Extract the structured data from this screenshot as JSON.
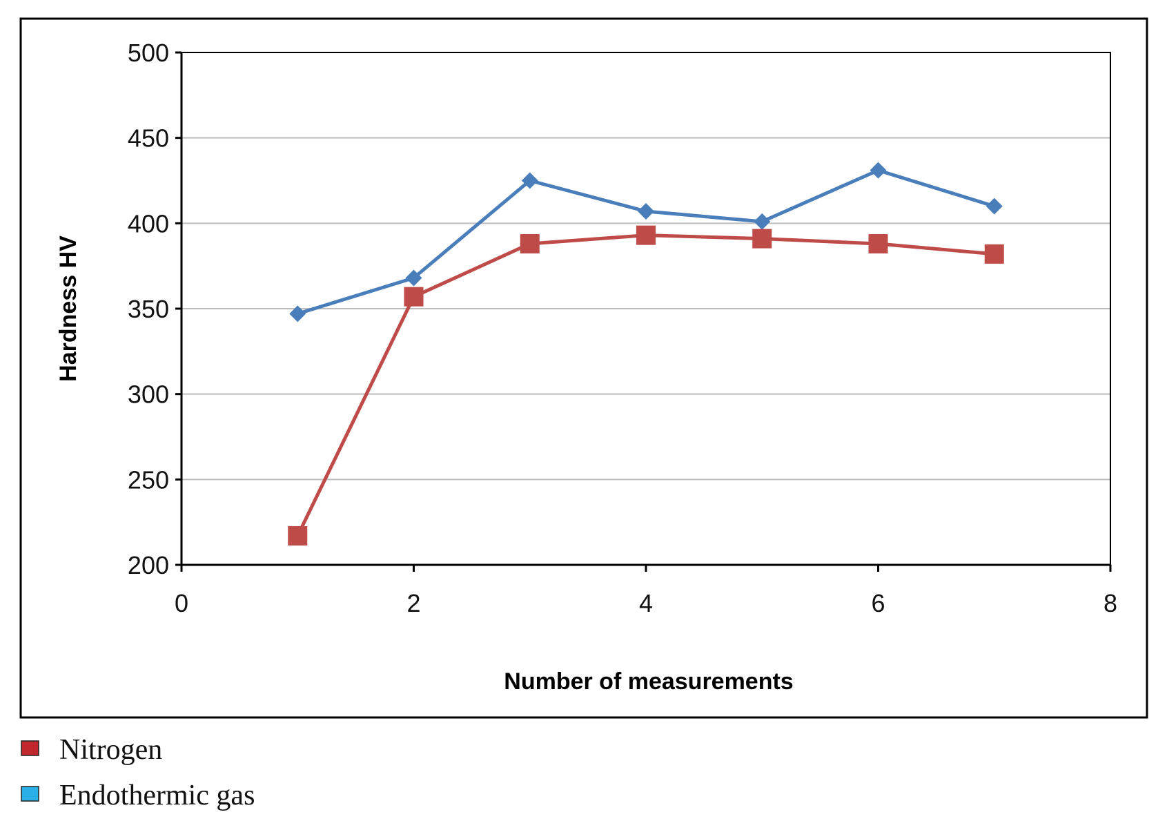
{
  "chart_data": {
    "type": "line",
    "title": "",
    "xlabel": "Number of measurements",
    "ylabel": "Hardness HV",
    "xlim": [
      0,
      8
    ],
    "ylim": [
      200,
      500
    ],
    "x_ticks": [
      0,
      2,
      4,
      6,
      8
    ],
    "y_ticks": [
      200,
      250,
      300,
      350,
      400,
      450,
      500
    ],
    "grid": "horizontal",
    "legend_position": "bottom-left, outside plot frame",
    "series": [
      {
        "name": "Endothermic gas",
        "color": "#4a7ebb",
        "legend_color": "#2ab0e6",
        "marker": "diamond",
        "x": [
          1,
          2,
          3,
          4,
          5,
          6,
          7
        ],
        "y": [
          347,
          368,
          425,
          407,
          401,
          431,
          410
        ]
      },
      {
        "name": "Nitrogen",
        "color": "#be4b48",
        "legend_color": "#c0282d",
        "marker": "square",
        "x": [
          1,
          2,
          3,
          4,
          5,
          6,
          7
        ],
        "y": [
          217,
          357,
          388,
          393,
          391,
          388,
          382
        ]
      }
    ],
    "legend": [
      {
        "label": "Nitrogen",
        "color": "#c0282d"
      },
      {
        "label": "Endothermic gas",
        "color": "#2ab0e6"
      }
    ]
  }
}
